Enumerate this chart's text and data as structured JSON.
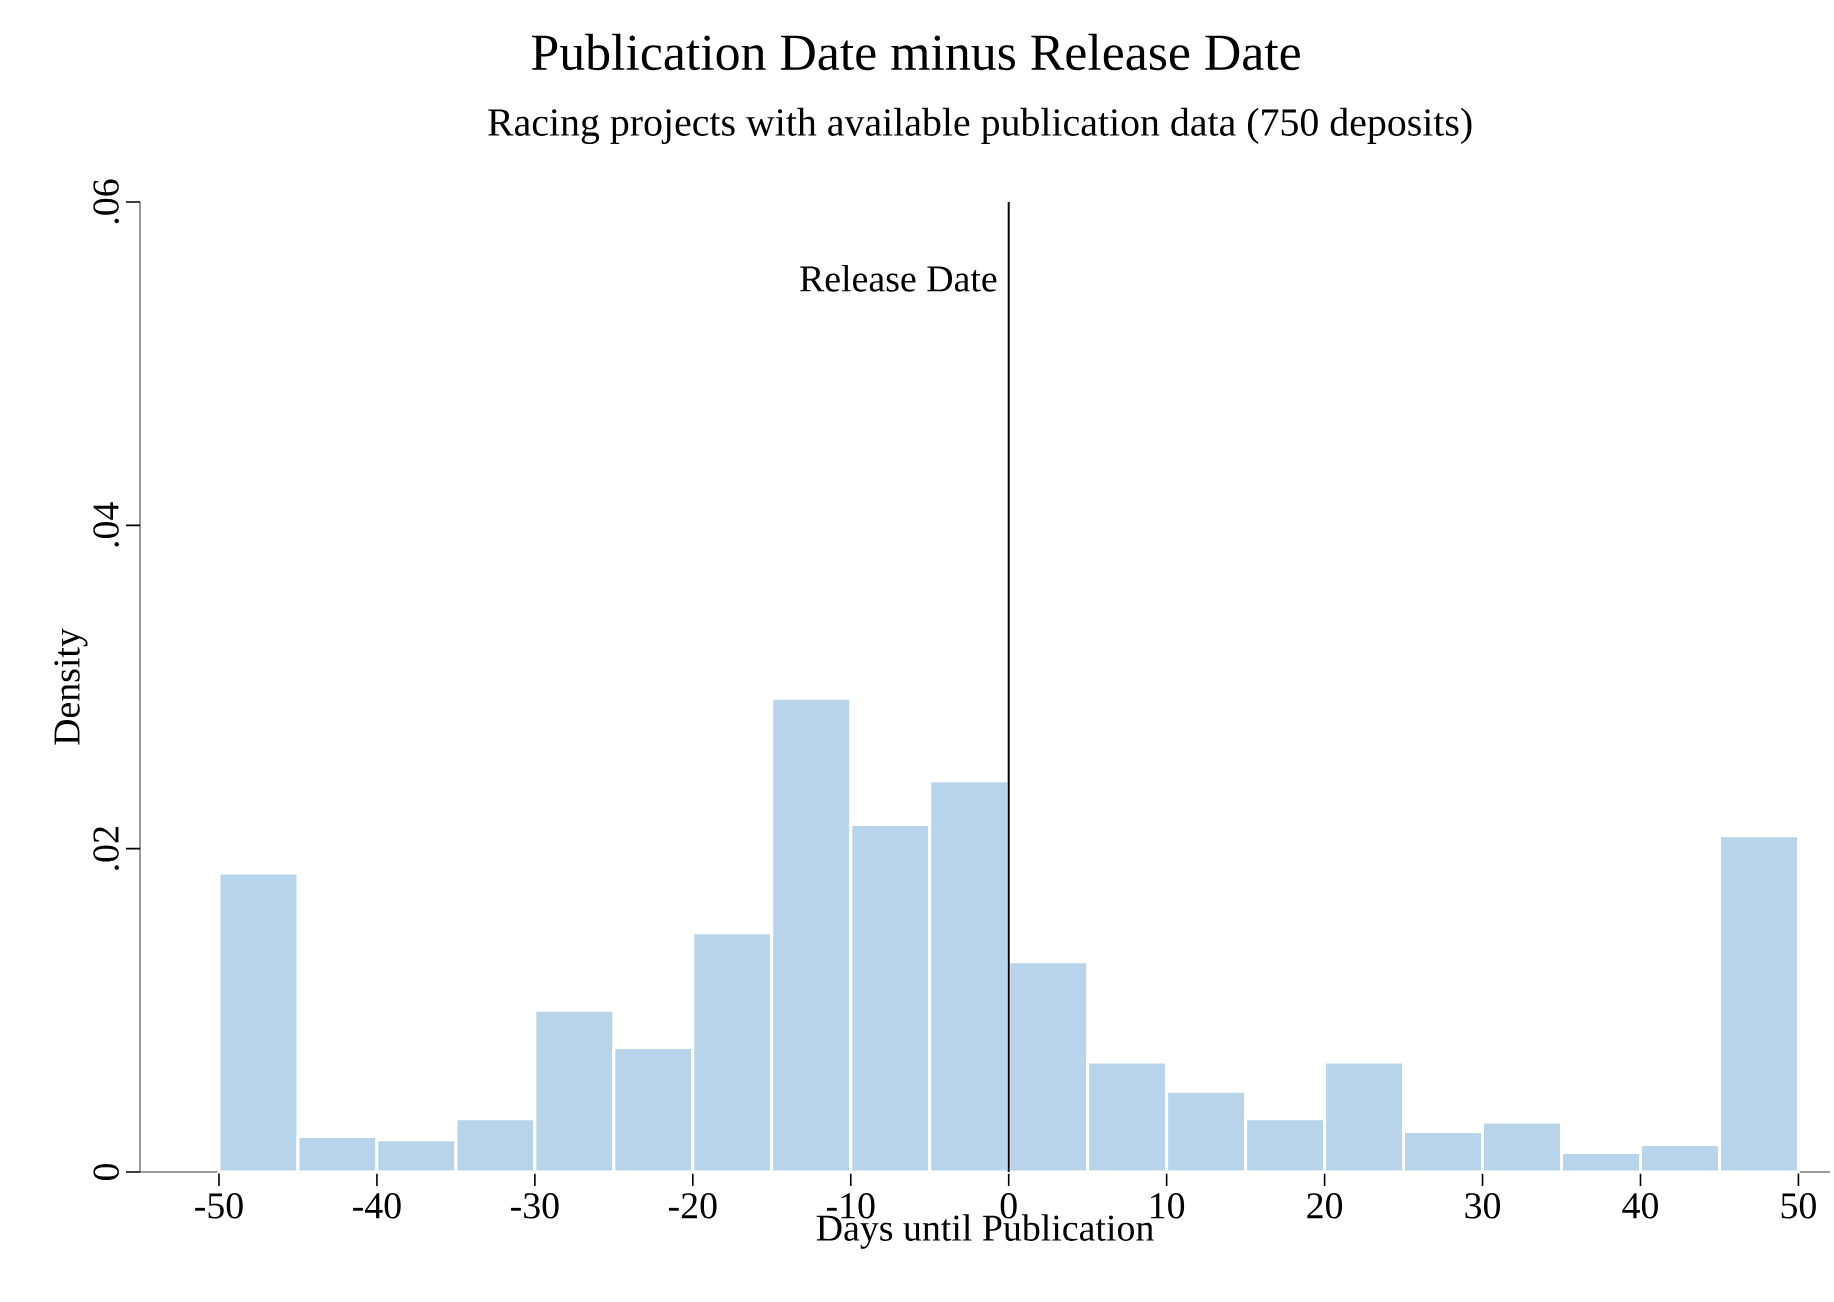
{
  "chart_data": {
    "type": "histogram",
    "title": "Publication Date minus Release Date",
    "subtitle": "Racing projects with available publication data (750 deposits)",
    "xlabel": "Days until Publication",
    "ylabel": "Density",
    "bins": [
      -50,
      -45,
      -40,
      -35,
      -30,
      -25,
      -20,
      -15,
      -10,
      -5,
      0,
      5,
      10,
      15,
      20,
      25,
      30,
      35,
      40,
      45,
      50
    ],
    "values": [
      0.0185,
      0.0022,
      0.002,
      0.0033,
      0.01,
      0.0077,
      0.0148,
      0.0293,
      0.0215,
      0.0242,
      0.013,
      0.0068,
      0.005,
      0.0033,
      0.0068,
      0.0025,
      0.0031,
      0.0012,
      0.0017,
      0.0208
    ],
    "color": "#b7d4ea",
    "xlim": [
      -55,
      52
    ],
    "ylim": [
      0,
      0.06
    ],
    "xticks": [
      -50,
      -40,
      -30,
      -20,
      -10,
      0,
      10,
      20,
      30,
      40,
      50
    ],
    "yticks": [
      {
        "value": 0,
        "label": "0"
      },
      {
        "value": 0.02,
        "label": ".02"
      },
      {
        "value": 0.04,
        "label": ".04"
      },
      {
        "value": 0.06,
        "label": ".06"
      }
    ],
    "ref_lines": [
      {
        "axis": "x",
        "value": 0,
        "label": "Release Date",
        "color": "#000000"
      }
    ]
  }
}
